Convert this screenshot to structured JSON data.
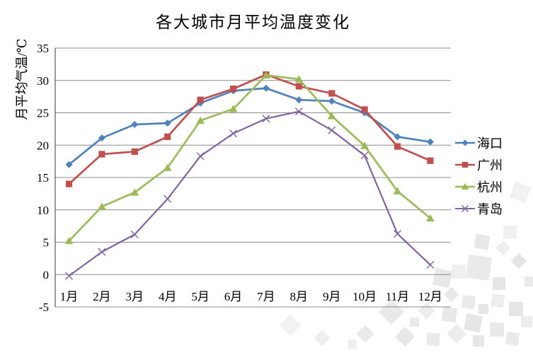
{
  "chart_data": {
    "type": "line",
    "title": "各大城市月平均温度变化",
    "ylabel": "月平均气温/℃",
    "xlabel": "",
    "categories": [
      "1月",
      "2月",
      "3月",
      "4月",
      "5月",
      "6月",
      "7月",
      "8月",
      "9月",
      "10月",
      "11月",
      "12月"
    ],
    "ylim": [
      -5,
      35
    ],
    "ytick_step": 5,
    "grid": true,
    "legend_position": "right",
    "series": [
      {
        "id": "haikou",
        "name": "海口",
        "color": "#4F81BD",
        "marker": "diamond",
        "values": [
          17,
          21.1,
          23.2,
          23.4,
          26.5,
          28.4,
          28.8,
          27,
          26.8,
          25,
          21.3,
          20.5
        ]
      },
      {
        "id": "guangzhou",
        "name": "广州",
        "color": "#C0504D",
        "marker": "square",
        "values": [
          14,
          18.6,
          19,
          21.3,
          27,
          28.7,
          30.9,
          29.1,
          28,
          25.5,
          19.8,
          17.6
        ]
      },
      {
        "id": "hangzhou",
        "name": "杭州",
        "color": "#9BBB59",
        "marker": "triangle",
        "values": [
          5.2,
          10.5,
          12.7,
          16.5,
          23.8,
          25.6,
          30.8,
          30.2,
          24.5,
          19.9,
          12.9,
          8.7
        ]
      },
      {
        "id": "qingdao",
        "name": "青岛",
        "color": "#8064A2",
        "marker": "x",
        "values": [
          -0.2,
          3.5,
          6.2,
          11.7,
          18.3,
          21.8,
          24.1,
          25.2,
          22.3,
          18.4,
          6.3,
          1.5
        ]
      }
    ]
  },
  "colors": {
    "gridline": "#8C8C8C",
    "axis": "#595959",
    "text": "#000000",
    "background": "#FFFFFF",
    "watermark": "#E5E5E5"
  }
}
